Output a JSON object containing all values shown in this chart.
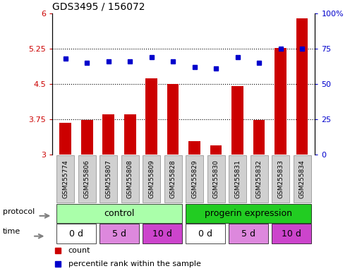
{
  "title": "GDS3495 / 156072",
  "samples": [
    "GSM255774",
    "GSM255806",
    "GSM255807",
    "GSM255808",
    "GSM255809",
    "GSM255828",
    "GSM255829",
    "GSM255830",
    "GSM255831",
    "GSM255832",
    "GSM255833",
    "GSM255834"
  ],
  "bar_values": [
    3.68,
    3.73,
    3.85,
    3.85,
    4.62,
    4.5,
    3.28,
    3.2,
    4.45,
    3.73,
    5.27,
    5.9
  ],
  "dot_values": [
    68,
    65,
    66,
    66,
    69,
    66,
    62,
    61,
    69,
    65,
    75,
    75
  ],
  "bar_color": "#cc0000",
  "dot_color": "#0000cc",
  "ylim_left": [
    3.0,
    6.0
  ],
  "ylim_right": [
    0,
    100
  ],
  "yticks_left": [
    3.0,
    3.75,
    4.5,
    5.25,
    6.0
  ],
  "yticks_right": [
    0,
    25,
    50,
    75,
    100
  ],
  "ytick_labels_left": [
    "3",
    "3.75",
    "4.5",
    "5.25",
    "6"
  ],
  "ytick_labels_right": [
    "0",
    "25",
    "50",
    "75",
    "100%"
  ],
  "hlines": [
    3.75,
    4.5,
    5.25
  ],
  "control_color_light": "#aaffaa",
  "control_color_dark": "#22cc22",
  "time_white": "#FFFFFF",
  "time_light": "#DD88DD",
  "time_dark": "#CC44CC",
  "sample_box_color": "#d0d0d0",
  "legend_count_color": "#CC0000",
  "legend_dot_color": "#0000CC",
  "time_labels": [
    "0 d",
    "5 d",
    "10 d",
    "0 d",
    "5 d",
    "10 d"
  ],
  "time_starts": [
    0,
    2,
    4,
    6,
    8,
    10
  ],
  "time_widths": [
    2,
    2,
    2,
    2,
    2,
    2
  ]
}
